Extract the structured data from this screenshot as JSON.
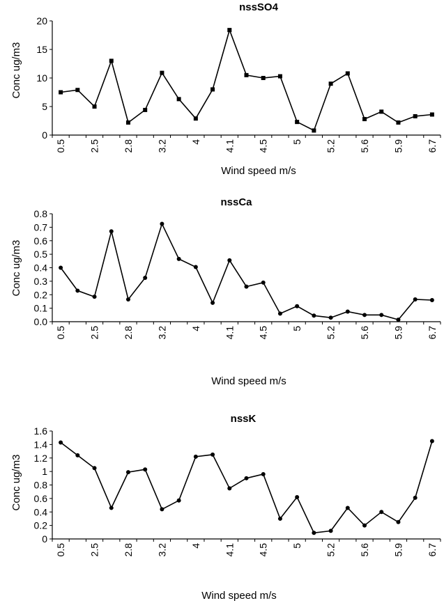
{
  "chart_data": [
    {
      "type": "line",
      "title": "nssSO4",
      "xlabel": "Wind speed m/s",
      "ylabel": "Conc ug/m3",
      "ylim": [
        0,
        20
      ],
      "yticks": [
        "0",
        "5",
        "10",
        "15",
        "20"
      ],
      "xtick_labels": [
        "0.5",
        "2.5",
        "2.8",
        "3.2",
        "4",
        "4.1",
        "4.5",
        "5",
        "5.2",
        "5.6",
        "5.9",
        "6.7"
      ],
      "marker": "square",
      "series": [
        {
          "values": [
            7.5,
            7.9,
            5.0,
            13.0,
            2.2,
            4.4,
            10.9,
            6.3,
            2.9,
            8.0,
            18.4,
            10.5,
            10.0,
            10.3,
            2.3,
            0.8,
            9.0,
            10.8,
            2.8,
            4.1,
            2.2,
            3.3,
            3.6
          ]
        }
      ]
    },
    {
      "type": "line",
      "title": "nssCa",
      "xlabel": "Wind speed m/s",
      "ylabel": "Conc ug/m3",
      "ylim": [
        0,
        0.8
      ],
      "yticks": [
        "0.0",
        "0.1",
        "0.2",
        "0.3",
        "0.4",
        "0.5",
        "0.6",
        "0.7",
        "0.8"
      ],
      "xtick_labels": [
        "0.5",
        "2.5",
        "2.8",
        "3.2",
        "4",
        "4.1",
        "4.5",
        "5",
        "5.2",
        "5.6",
        "5.9",
        "6.7"
      ],
      "marker": "circle",
      "series": [
        {
          "values": [
            0.4,
            0.23,
            0.185,
            0.67,
            0.165,
            0.325,
            0.725,
            0.465,
            0.405,
            0.14,
            0.455,
            0.26,
            0.29,
            0.06,
            0.115,
            0.045,
            0.03,
            0.075,
            0.05,
            0.05,
            0.015,
            0.165,
            0.16
          ]
        }
      ]
    },
    {
      "type": "line",
      "title": "nssK",
      "xlabel": "Wind speed m/s",
      "ylabel": "Conc ug/m3",
      "ylim": [
        0,
        1.6
      ],
      "yticks": [
        "0",
        "0.2",
        "0.4",
        "0.6",
        "0.8",
        "1",
        "1.2",
        "1.4",
        "1.6"
      ],
      "xtick_labels": [
        "0.5",
        "2.5",
        "2.8",
        "3.2",
        "4",
        "4.1",
        "4.5",
        "5",
        "5.2",
        "5.6",
        "5.9",
        "6.7"
      ],
      "marker": "circle",
      "series": [
        {
          "values": [
            1.43,
            1.24,
            1.05,
            0.46,
            0.99,
            1.03,
            0.44,
            0.57,
            1.22,
            1.25,
            0.75,
            0.9,
            0.96,
            0.3,
            0.62,
            0.09,
            0.12,
            0.46,
            0.2,
            0.4,
            0.25,
            0.61,
            1.45
          ]
        }
      ]
    }
  ]
}
